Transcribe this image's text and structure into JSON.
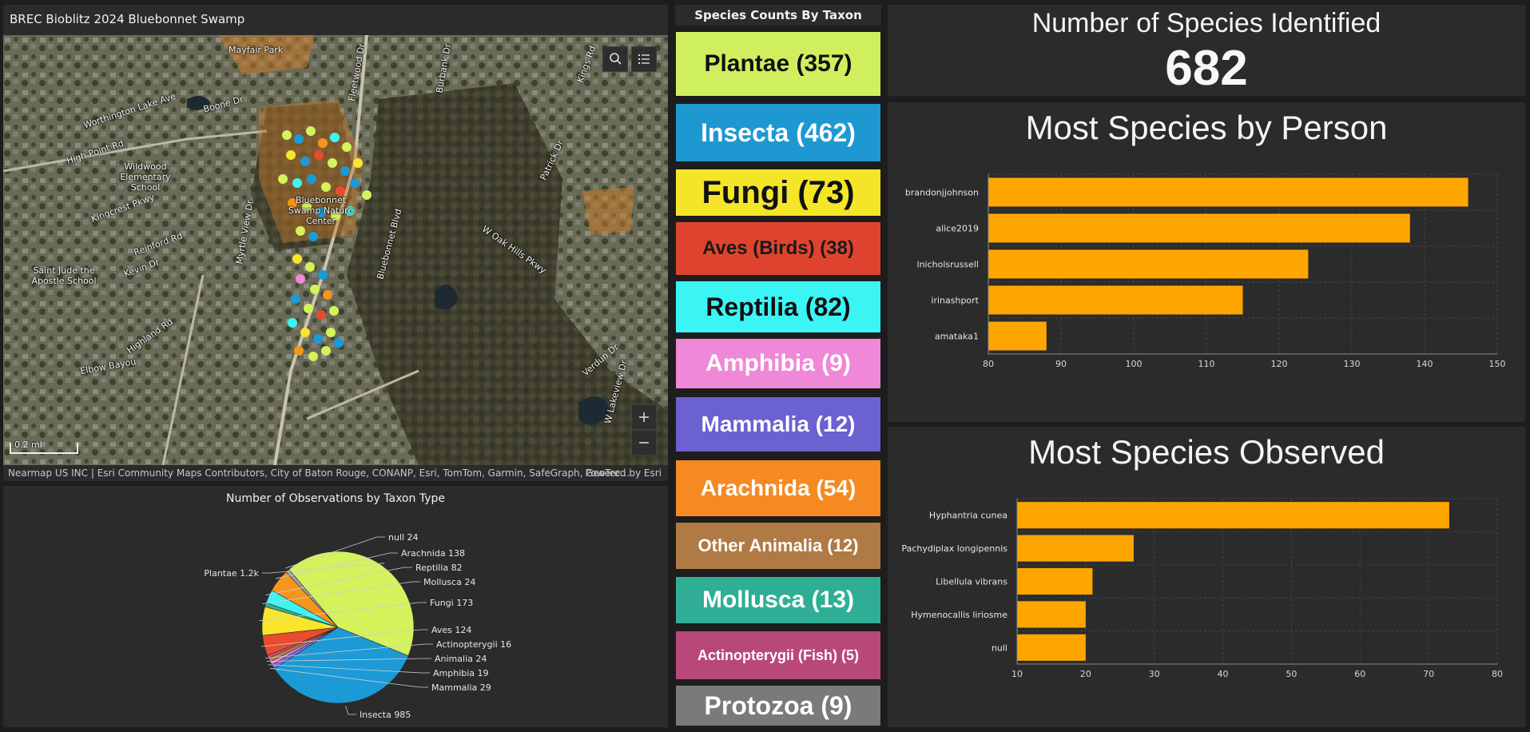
{
  "map": {
    "title": "BREC Bioblitz 2024 Bluebonnet Swamp",
    "attribution": "Nearmap US INC | Esri Community Maps Contributors, City of Baton Rouge, CONANP, Esri, TomTom, Garmin, SafeGraph, GeoTec...",
    "powered_by": "Powered by Esri",
    "scale": "0.2 mi",
    "labels": [
      "Mayfair Park",
      "Worthington Lake Ave",
      "High Point Rd",
      "Boone Dr",
      "Wildwood Elementary School",
      "Kingcrest Pkwy",
      "Reinford Rd",
      "Kevin Dr",
      "Saint Jude the Apostle School",
      "Highland Rd",
      "Bluebonnet Swamp Nature Center",
      "Bluebonnet Blvd",
      "Myrtle View Dr",
      "W Oak Hills Pkwy",
      "Verdun Dr",
      "W Lakeview Dr",
      "Elbow Bayou",
      "Patrick Dr",
      "Kings Rd",
      "Fleetwood Dr",
      "Burbank Dr"
    ]
  },
  "pie": {
    "title": "Number of Observations by Taxon Type",
    "slices": [
      {
        "label": "Insecta",
        "value": 985,
        "display": "Insecta 985",
        "color": "#1c9ad6"
      },
      {
        "label": "Mammalia",
        "value": 29,
        "display": "Mammalia 29",
        "color": "#7b68d9"
      },
      {
        "label": "Amphibia",
        "value": 19,
        "display": "Amphibia 19",
        "color": "#ef8ad6"
      },
      {
        "label": "Animalia",
        "value": 24,
        "display": "Animalia 24",
        "color": "#b5834e"
      },
      {
        "label": "Actinopterygii",
        "value": 16,
        "display": "Actinopterygii 16",
        "color": "#d6507d"
      },
      {
        "label": "Aves",
        "value": 124,
        "display": "Aves 124",
        "color": "#e84b2e"
      },
      {
        "label": "Fungi",
        "value": 173,
        "display": "Fungi 173",
        "color": "#f8e52c"
      },
      {
        "label": "Mollusca",
        "value": 24,
        "display": "Mollusca 24",
        "color": "#2fb39a"
      },
      {
        "label": "Reptilia",
        "value": 82,
        "display": "Reptilia 82",
        "color": "#3ff3f3"
      },
      {
        "label": "Arachnida",
        "value": 138,
        "display": "Arachnida 138",
        "color": "#f7941e"
      },
      {
        "label": "null",
        "value": 24,
        "display": "null 24",
        "color": "#a0a0a0"
      },
      {
        "label": "Plantae",
        "value": 1200,
        "display": "Plantae 1.2k",
        "color": "#d3f25c"
      }
    ]
  },
  "counts": {
    "header": "Species Counts By Taxon",
    "items": [
      {
        "label": "Plantae (357)",
        "bg": "#d0ef5e",
        "fg": "#111111"
      },
      {
        "label": "Insecta (462)",
        "bg": "#1d98d0",
        "fg": "#ffffff"
      },
      {
        "label": "Fungi (73)",
        "bg": "#f5e528",
        "fg": "#111111"
      },
      {
        "label": "Aves (Birds) (38)",
        "bg": "#e0432d",
        "fg": "#1a1a1a"
      },
      {
        "label": "Reptilia (82)",
        "bg": "#3bf5f5",
        "fg": "#111111"
      },
      {
        "label": "Amphibia (9)",
        "bg": "#ef88d7",
        "fg": "#ffffff"
      },
      {
        "label": "Mammalia (12)",
        "bg": "#6b61d1",
        "fg": "#ffffff"
      },
      {
        "label": "Arachnida (54)",
        "bg": "#f58a23",
        "fg": "#ffffff"
      },
      {
        "label": "Other Animalia (12)",
        "bg": "#b07a45",
        "fg": "#ffffff"
      },
      {
        "label": "Mollusca (13)",
        "bg": "#2fae95",
        "fg": "#ffffff"
      },
      {
        "label": "Actinopterygii (Fish) (5)",
        "bg": "#b9487a",
        "fg": "#ffffff"
      },
      {
        "label": "Protozoa (9)",
        "bg": "#7a7a7a",
        "fg": "#ffffff"
      }
    ]
  },
  "species_total": {
    "title": "Number of Species Identified",
    "value": "682"
  },
  "chart_data": [
    {
      "type": "bar",
      "orientation": "horizontal",
      "title": "Most Species by Person",
      "categories": [
        "brandonjjohnson",
        "alice2019",
        "lnicholsrussell",
        "irinashport",
        "amataka1"
      ],
      "values": [
        146,
        138,
        124,
        115,
        88
      ],
      "xlim": [
        80,
        150
      ],
      "ticks": [
        80,
        90,
        100,
        110,
        120,
        130,
        140,
        150
      ],
      "color": "#ffa500",
      "grid": true
    },
    {
      "type": "bar",
      "orientation": "horizontal",
      "title": "Most Species Observed",
      "categories": [
        "Hyphantria cunea",
        "Pachydiplax longipennis",
        "Libellula vibrans",
        "Hymenocallis liriosme",
        "null"
      ],
      "values": [
        73,
        27,
        21,
        20,
        20
      ],
      "xlim": [
        10,
        80
      ],
      "ticks": [
        10,
        20,
        30,
        40,
        50,
        60,
        70,
        80
      ],
      "color": "#ffa500",
      "grid": true
    }
  ]
}
